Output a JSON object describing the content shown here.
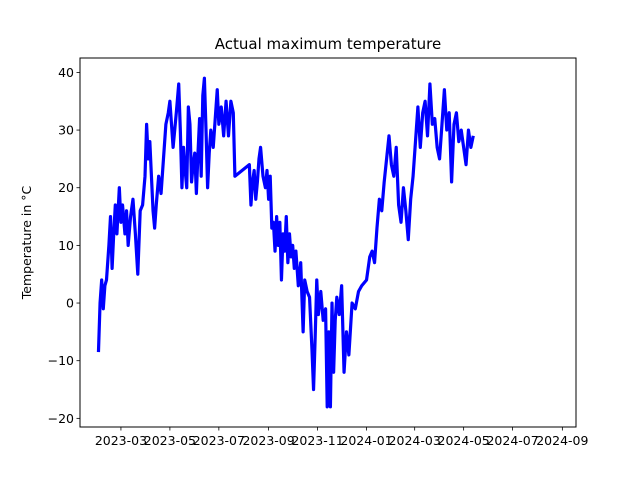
{
  "chart_data": {
    "type": "line",
    "title": "Actual maximum temperature",
    "xlabel": "",
    "ylabel": "Temperature in °C",
    "x_ticks": [
      "2023-03",
      "2023-05",
      "2023-07",
      "2023-09",
      "2023-11",
      "2024-01",
      "2024-03",
      "2024-05",
      "2024-07",
      "2024-09"
    ],
    "y_ticks": [
      -20,
      -10,
      0,
      10,
      20,
      30,
      40
    ],
    "xlim": [
      "2023-01-09",
      "2024-09-18"
    ],
    "ylim": [
      -21.5,
      42.5
    ],
    "grid": false,
    "line_color": "#0000ff",
    "series": [
      {
        "points": [
          [
            "2023-02-01",
            -8.5
          ],
          [
            "2023-02-03",
            0
          ],
          [
            "2023-02-05",
            4
          ],
          [
            "2023-02-07",
            -1
          ],
          [
            "2023-02-09",
            3
          ],
          [
            "2023-02-11",
            4
          ],
          [
            "2023-02-14",
            10
          ],
          [
            "2023-02-16",
            15
          ],
          [
            "2023-02-18",
            6
          ],
          [
            "2023-02-20",
            12
          ],
          [
            "2023-02-22",
            17
          ],
          [
            "2023-02-24",
            12
          ],
          [
            "2023-02-27",
            20
          ],
          [
            "2023-03-01",
            14
          ],
          [
            "2023-03-03",
            17
          ],
          [
            "2023-03-06",
            12
          ],
          [
            "2023-03-08",
            16
          ],
          [
            "2023-03-10",
            10
          ],
          [
            "2023-03-13",
            15
          ],
          [
            "2023-03-16",
            18
          ],
          [
            "2023-03-19",
            12
          ],
          [
            "2023-03-22",
            5
          ],
          [
            "2023-03-25",
            16
          ],
          [
            "2023-03-28",
            17
          ],
          [
            "2023-03-31",
            22
          ],
          [
            "2023-04-02",
            31
          ],
          [
            "2023-04-04",
            25
          ],
          [
            "2023-04-06",
            28
          ],
          [
            "2023-04-08",
            22
          ],
          [
            "2023-04-10",
            16
          ],
          [
            "2023-04-12",
            13
          ],
          [
            "2023-04-14",
            17
          ],
          [
            "2023-04-17",
            22
          ],
          [
            "2023-04-20",
            19
          ],
          [
            "2023-04-23",
            25
          ],
          [
            "2023-04-26",
            31
          ],
          [
            "2023-04-29",
            33
          ],
          [
            "2023-05-01",
            35
          ],
          [
            "2023-05-03",
            31
          ],
          [
            "2023-05-05",
            27
          ],
          [
            "2023-05-07",
            30
          ],
          [
            "2023-05-09",
            33
          ],
          [
            "2023-05-12",
            38
          ],
          [
            "2023-05-14",
            30
          ],
          [
            "2023-05-16",
            20
          ],
          [
            "2023-05-18",
            27
          ],
          [
            "2023-05-20",
            23
          ],
          [
            "2023-05-22",
            20
          ],
          [
            "2023-05-24",
            34
          ],
          [
            "2023-05-26",
            31
          ],
          [
            "2023-05-28",
            21
          ],
          [
            "2023-05-30",
            24
          ],
          [
            "2023-06-01",
            26
          ],
          [
            "2023-06-03",
            19
          ],
          [
            "2023-06-05",
            26
          ],
          [
            "2023-06-07",
            32
          ],
          [
            "2023-06-09",
            22
          ],
          [
            "2023-06-11",
            36
          ],
          [
            "2023-06-13",
            39
          ],
          [
            "2023-06-15",
            30
          ],
          [
            "2023-06-17",
            20
          ],
          [
            "2023-06-19",
            26
          ],
          [
            "2023-06-21",
            30
          ],
          [
            "2023-06-24",
            27
          ],
          [
            "2023-06-27",
            33
          ],
          [
            "2023-06-29",
            37
          ],
          [
            "2023-07-01",
            31
          ],
          [
            "2023-07-04",
            34
          ],
          [
            "2023-07-07",
            29
          ],
          [
            "2023-07-10",
            35
          ],
          [
            "2023-07-13",
            29
          ],
          [
            "2023-07-16",
            35
          ],
          [
            "2023-07-19",
            33
          ],
          [
            "2023-07-21",
            22
          ],
          [
            "2023-08-08",
            24
          ],
          [
            "2023-08-10",
            17
          ],
          [
            "2023-08-12",
            21
          ],
          [
            "2023-08-14",
            23
          ],
          [
            "2023-08-16",
            18
          ],
          [
            "2023-08-18",
            21
          ],
          [
            "2023-08-20",
            25
          ],
          [
            "2023-08-22",
            27
          ],
          [
            "2023-08-25",
            22
          ],
          [
            "2023-08-28",
            20
          ],
          [
            "2023-08-30",
            23
          ],
          [
            "2023-09-01",
            18
          ],
          [
            "2023-09-03",
            22
          ],
          [
            "2023-09-05",
            13
          ],
          [
            "2023-09-07",
            14
          ],
          [
            "2023-09-09",
            9
          ],
          [
            "2023-09-11",
            15
          ],
          [
            "2023-09-13",
            10
          ],
          [
            "2023-09-15",
            14
          ],
          [
            "2023-09-17",
            4
          ],
          [
            "2023-09-19",
            12
          ],
          [
            "2023-09-21",
            9
          ],
          [
            "2023-09-23",
            15
          ],
          [
            "2023-09-25",
            7
          ],
          [
            "2023-09-27",
            12
          ],
          [
            "2023-09-29",
            8
          ],
          [
            "2023-10-01",
            10
          ],
          [
            "2023-10-03",
            6
          ],
          [
            "2023-10-05",
            9
          ],
          [
            "2023-10-08",
            3
          ],
          [
            "2023-10-11",
            7
          ],
          [
            "2023-10-14",
            -5
          ],
          [
            "2023-10-16",
            4
          ],
          [
            "2023-10-19",
            2
          ],
          [
            "2023-10-22",
            1
          ],
          [
            "2023-10-25",
            -8
          ],
          [
            "2023-10-27",
            -15
          ],
          [
            "2023-10-29",
            -6
          ],
          [
            "2023-10-31",
            4
          ],
          [
            "2023-11-02",
            -2
          ],
          [
            "2023-11-05",
            2
          ],
          [
            "2023-11-08",
            -3
          ],
          [
            "2023-11-11",
            -1
          ],
          [
            "2023-11-13",
            -18
          ],
          [
            "2023-11-15",
            -5
          ],
          [
            "2023-11-17",
            -18
          ],
          [
            "2023-11-19",
            0
          ],
          [
            "2023-11-21",
            -12
          ],
          [
            "2023-11-23",
            -3
          ],
          [
            "2023-11-25",
            1
          ],
          [
            "2023-11-28",
            -2
          ],
          [
            "2023-12-01",
            3
          ],
          [
            "2023-12-04",
            -12
          ],
          [
            "2023-12-07",
            -5
          ],
          [
            "2023-12-10",
            -9
          ],
          [
            "2023-12-14",
            0
          ],
          [
            "2023-12-18",
            -1
          ],
          [
            "2023-12-22",
            2
          ],
          [
            "2023-12-26",
            3
          ],
          [
            "2024-01-01",
            4
          ],
          [
            "2024-01-05",
            8
          ],
          [
            "2024-01-08",
            9
          ],
          [
            "2024-01-11",
            7
          ],
          [
            "2024-01-14",
            13
          ],
          [
            "2024-01-17",
            18
          ],
          [
            "2024-01-20",
            16
          ],
          [
            "2024-01-23",
            21
          ],
          [
            "2024-01-26",
            25
          ],
          [
            "2024-01-29",
            29
          ],
          [
            "2024-02-01",
            24
          ],
          [
            "2024-02-04",
            22
          ],
          [
            "2024-02-07",
            27
          ],
          [
            "2024-02-10",
            17
          ],
          [
            "2024-02-13",
            14
          ],
          [
            "2024-02-16",
            20
          ],
          [
            "2024-02-19",
            16
          ],
          [
            "2024-02-22",
            11
          ],
          [
            "2024-02-25",
            18
          ],
          [
            "2024-02-28",
            22
          ],
          [
            "2024-03-02",
            28
          ],
          [
            "2024-03-05",
            34
          ],
          [
            "2024-03-08",
            27
          ],
          [
            "2024-03-11",
            33
          ],
          [
            "2024-03-14",
            35
          ],
          [
            "2024-03-17",
            29
          ],
          [
            "2024-03-20",
            38
          ],
          [
            "2024-03-23",
            31
          ],
          [
            "2024-03-26",
            32
          ],
          [
            "2024-03-29",
            27
          ],
          [
            "2024-04-01",
            25
          ],
          [
            "2024-04-04",
            31
          ],
          [
            "2024-04-07",
            37
          ],
          [
            "2024-04-10",
            30
          ],
          [
            "2024-04-13",
            33
          ],
          [
            "2024-04-16",
            21
          ],
          [
            "2024-04-19",
            31
          ],
          [
            "2024-04-22",
            33
          ],
          [
            "2024-04-25",
            28
          ],
          [
            "2024-04-28",
            30
          ],
          [
            "2024-05-01",
            27
          ],
          [
            "2024-05-04",
            24
          ],
          [
            "2024-05-07",
            30
          ],
          [
            "2024-05-10",
            27
          ],
          [
            "2024-05-13",
            29
          ]
        ]
      }
    ]
  }
}
